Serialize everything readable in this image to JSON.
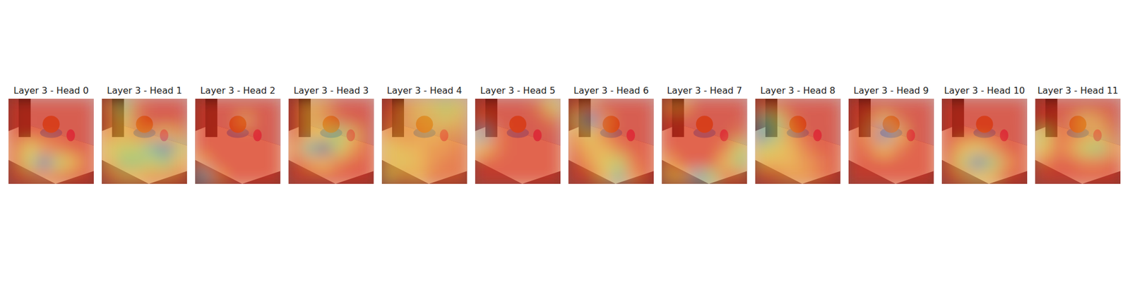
{
  "chart_data": [
    {
      "type": "heatmap",
      "title": "Layer 3 - Head 0",
      "tick_labels": false,
      "values": [
        [
          0,
          0,
          0,
          0,
          0,
          0
        ],
        [
          0,
          0,
          0,
          0,
          0,
          0
        ],
        [
          0,
          0,
          0,
          0,
          0,
          0
        ],
        [
          0.1,
          0.4,
          0.2,
          0.1,
          0,
          0
        ],
        [
          0.1,
          0.5,
          0.9,
          0.5,
          0.3,
          0
        ],
        [
          0,
          0.1,
          0.2,
          0.1,
          0,
          0
        ]
      ]
    },
    {
      "type": "heatmap",
      "title": "Layer 3 - Head 1",
      "tick_labels": false,
      "values": [
        [
          0.2,
          0.6,
          0.1,
          0,
          0,
          0
        ],
        [
          0.1,
          0.4,
          0.1,
          0,
          0,
          0
        ],
        [
          0.2,
          0.3,
          0.2,
          0.2,
          0.3,
          0.2
        ],
        [
          0.4,
          0.5,
          0.5,
          0.7,
          0.9,
          0.5
        ],
        [
          0.3,
          0.6,
          0.6,
          0.5,
          0.6,
          0.3
        ],
        [
          0.1,
          0.3,
          0.3,
          0.2,
          0.2,
          0.1
        ]
      ]
    },
    {
      "type": "heatmap",
      "title": "Layer 3 - Head 2",
      "tick_labels": false,
      "values": [
        [
          0,
          0,
          0,
          0,
          0,
          0
        ],
        [
          0,
          0,
          0,
          0.2,
          0,
          0
        ],
        [
          0,
          0,
          0,
          0,
          0,
          0
        ],
        [
          0,
          0,
          0,
          0,
          0,
          0
        ],
        [
          0.2,
          0,
          0,
          0,
          0,
          0
        ],
        [
          0.8,
          0.2,
          0,
          0,
          0,
          0
        ]
      ]
    },
    {
      "type": "heatmap",
      "title": "Layer 3 - Head 3",
      "tick_labels": false,
      "values": [
        [
          0,
          0.3,
          0.2,
          0,
          0,
          0
        ],
        [
          0,
          0.3,
          0.2,
          0.1,
          0,
          0
        ],
        [
          0,
          0.3,
          0.4,
          0.6,
          0.3,
          0
        ],
        [
          0.2,
          0.7,
          1,
          0.5,
          0.2,
          0
        ],
        [
          0,
          0.2,
          0.3,
          0.1,
          0,
          0
        ],
        [
          0,
          0,
          0,
          0,
          0,
          0
        ]
      ]
    },
    {
      "type": "heatmap",
      "title": "Layer 3 - Head 4",
      "tick_labels": false,
      "values": [
        [
          0,
          0.2,
          0.3,
          0.4,
          0.5,
          0.4
        ],
        [
          0.1,
          0.2,
          0.3,
          0.3,
          0.4,
          0.3
        ],
        [
          0.2,
          0.2,
          0.2,
          0.3,
          0.2,
          0.2
        ],
        [
          0.4,
          0.3,
          0.3,
          0.2,
          0.2,
          0.1
        ],
        [
          0.3,
          0.4,
          0.3,
          0.2,
          0.1,
          0.1
        ],
        [
          0.4,
          0.2,
          0.3,
          0.1,
          0.1,
          0.1
        ]
      ]
    },
    {
      "type": "heatmap",
      "title": "Layer 3 - Head 5",
      "tick_labels": false,
      "values": [
        [
          0,
          0,
          0,
          0,
          0.1,
          0.4
        ],
        [
          0.1,
          0,
          0,
          0,
          0,
          0.1
        ],
        [
          0.8,
          0.1,
          0,
          0,
          0,
          0
        ],
        [
          0.3,
          0.1,
          0,
          0,
          0,
          0
        ],
        [
          0,
          0,
          0,
          0,
          0,
          0
        ],
        [
          0,
          0,
          0,
          0,
          0,
          0
        ]
      ]
    },
    {
      "type": "heatmap",
      "title": "Layer 3 - Head 6",
      "tick_labels": false,
      "values": [
        [
          0.1,
          0.2,
          0,
          0,
          0,
          0
        ],
        [
          0.4,
          0.9,
          0.2,
          0,
          0,
          0
        ],
        [
          0.2,
          0.4,
          0.1,
          0,
          0,
          0
        ],
        [
          0.1,
          0.3,
          0.3,
          0.1,
          0,
          0
        ],
        [
          0,
          0.2,
          0.4,
          0.5,
          0.1,
          0
        ],
        [
          0,
          0,
          0.3,
          0.7,
          0.2,
          0
        ]
      ]
    },
    {
      "type": "heatmap",
      "title": "Layer 3 - Head 7",
      "tick_labels": false,
      "values": [
        [
          0.2,
          0.2,
          0,
          0,
          0,
          0
        ],
        [
          0,
          0,
          0,
          0,
          0,
          0
        ],
        [
          0,
          0,
          0,
          0,
          0,
          0.1
        ],
        [
          0,
          0,
          0,
          0,
          0.1,
          0.5
        ],
        [
          0.2,
          0,
          0,
          0,
          0.3,
          0.6
        ],
        [
          0.3,
          0.3,
          0.8,
          0.6,
          0.1,
          0.1
        ]
      ]
    },
    {
      "type": "heatmap",
      "title": "Layer 3 - Head 8",
      "tick_labels": false,
      "values": [
        [
          0.1,
          0.1,
          0,
          0,
          0,
          0
        ],
        [
          0.7,
          0.5,
          0.1,
          0,
          0,
          0
        ],
        [
          0.9,
          0.6,
          0.2,
          0,
          0,
          0
        ],
        [
          0.5,
          0.4,
          0.3,
          0.1,
          0,
          0
        ],
        [
          0.3,
          0.3,
          0.3,
          0.2,
          0.1,
          0
        ],
        [
          0,
          0.1,
          0.2,
          0.2,
          0.1,
          0
        ]
      ]
    },
    {
      "type": "heatmap",
      "title": "Layer 3 - Head 9",
      "tick_labels": false,
      "values": [
        [
          0,
          0,
          0,
          0,
          0,
          0
        ],
        [
          0,
          0.1,
          0.3,
          0.1,
          0,
          0
        ],
        [
          0,
          0.2,
          0.9,
          0.3,
          0,
          0
        ],
        [
          0,
          0.1,
          0.3,
          0.1,
          0,
          0
        ],
        [
          0,
          0,
          0,
          0,
          0,
          0
        ],
        [
          0,
          0,
          0,
          0,
          0,
          0
        ]
      ]
    },
    {
      "type": "heatmap",
      "title": "Layer 3 - Head 10",
      "tick_labels": false,
      "values": [
        [
          0,
          0,
          0,
          0,
          0,
          0
        ],
        [
          0,
          0,
          0,
          0,
          0,
          0
        ],
        [
          0,
          0,
          0,
          0,
          0,
          0
        ],
        [
          0,
          0.3,
          0.4,
          0.2,
          0,
          0
        ],
        [
          0.1,
          0.5,
          0.9,
          0.6,
          0.2,
          0
        ],
        [
          0,
          0.2,
          0.4,
          0.3,
          0,
          0
        ]
      ]
    },
    {
      "type": "heatmap",
      "title": "Layer 3 - Head 11",
      "tick_labels": false,
      "values": [
        [
          0,
          0,
          0,
          0,
          0,
          0
        ],
        [
          0,
          0,
          0.1,
          0.3,
          0.2,
          0
        ],
        [
          0.5,
          0.1,
          0.1,
          0.2,
          0.3,
          0.1
        ],
        [
          0.4,
          0.1,
          0.2,
          0.5,
          0.6,
          0.2
        ],
        [
          0.1,
          0,
          0,
          0.1,
          0.1,
          0
        ],
        [
          0,
          0,
          0,
          0,
          0,
          0
        ]
      ]
    }
  ]
}
